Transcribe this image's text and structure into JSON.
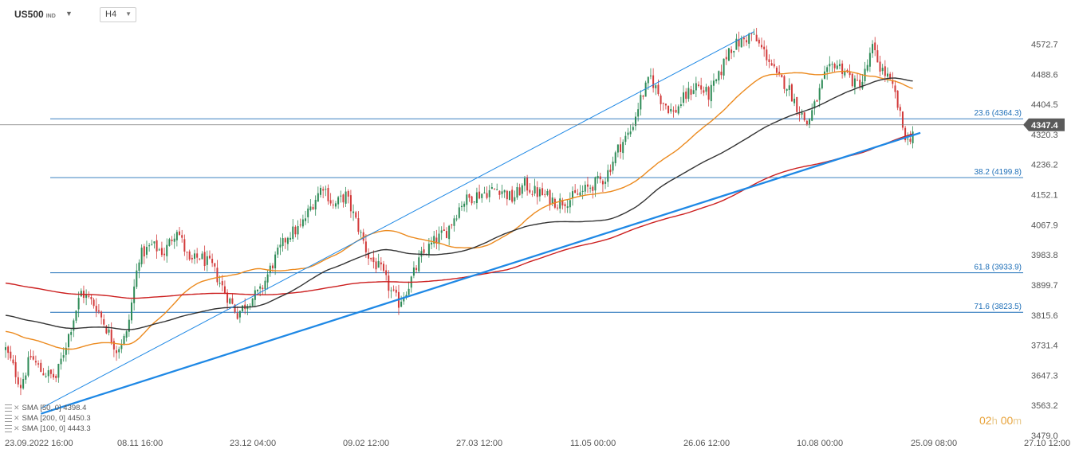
{
  "header": {
    "symbol": "US500",
    "symbol_type": "IND",
    "timeframe": "H4"
  },
  "countdown": {
    "hours": "02",
    "hours_unit": "h",
    "minutes": "00",
    "minutes_unit": "m"
  },
  "colors": {
    "up_candle": "#2e8b57",
    "down_candle": "#d23a3a",
    "sma50": "#ec8a1e",
    "sma100": "#333333",
    "sma200": "#cc1f1f",
    "trendline": "#1e88e5",
    "fib": "#1e6fb8",
    "price_tag": "#5a5a5a"
  },
  "chart_data": {
    "type": "candlestick",
    "instrument": "US500",
    "timeframe": "H4",
    "y_ticks": [
      4572.7,
      4488.6,
      4404.5,
      4320.3,
      4236.2,
      4152.1,
      4067.9,
      3983.8,
      3899.7,
      3815.6,
      3731.4,
      3647.3,
      3563.2,
      3479.0
    ],
    "x_ticks": [
      "23.09.2022 16:00",
      "08.11 16:00",
      "23.12 04:00",
      "09.02 12:00",
      "27.03 12:00",
      "11.05 00:00",
      "26.06 12:00",
      "10.08 00:00",
      "25.09 08:00",
      "27.10 12:00"
    ],
    "ylim": [
      3479.0,
      4600.0
    ],
    "current_price": 4347.4,
    "fib_levels": [
      {
        "label": "23.6 (4364.3)",
        "value": 4364.3
      },
      {
        "label": "38.2 (4199.8)",
        "value": 4199.8
      },
      {
        "label": "61.8 (3933.9)",
        "value": 3933.9
      },
      {
        "label": "71.6 (3823.5)",
        "value": 3823.5
      }
    ],
    "price_anchors": [
      [
        0,
        3720
      ],
      [
        6,
        3620
      ],
      [
        10,
        3700
      ],
      [
        14,
        3660
      ],
      [
        20,
        3640
      ],
      [
        25,
        3760
      ],
      [
        30,
        3880
      ],
      [
        36,
        3840
      ],
      [
        40,
        3780
      ],
      [
        44,
        3720
      ],
      [
        48,
        3760
      ],
      [
        53,
        3980
      ],
      [
        58,
        4010
      ],
      [
        63,
        3990
      ],
      [
        68,
        4060
      ],
      [
        73,
        3960
      ],
      [
        77,
        3980
      ],
      [
        82,
        3950
      ],
      [
        87,
        3880
      ],
      [
        92,
        3820
      ],
      [
        97,
        3860
      ],
      [
        101,
        3880
      ],
      [
        106,
        3960
      ],
      [
        112,
        4040
      ],
      [
        117,
        4060
      ],
      [
        122,
        4130
      ],
      [
        126,
        4180
      ],
      [
        130,
        4120
      ],
      [
        135,
        4150
      ],
      [
        140,
        4060
      ],
      [
        144,
        3980
      ],
      [
        149,
        3940
      ],
      [
        153,
        3880
      ],
      [
        156,
        3850
      ],
      [
        160,
        3900
      ],
      [
        165,
        3980
      ],
      [
        170,
        4020
      ],
      [
        175,
        4050
      ],
      [
        181,
        4130
      ],
      [
        186,
        4150
      ],
      [
        191,
        4160
      ],
      [
        196,
        4170
      ],
      [
        201,
        4140
      ],
      [
        206,
        4180
      ],
      [
        210,
        4160
      ],
      [
        214,
        4150
      ],
      [
        219,
        4130
      ],
      [
        224,
        4140
      ],
      [
        229,
        4160
      ],
      [
        233,
        4180
      ],
      [
        238,
        4200
      ],
      [
        243,
        4280
      ],
      [
        248,
        4330
      ],
      [
        252,
        4420
      ],
      [
        256,
        4480
      ],
      [
        260,
        4420
      ],
      [
        265,
        4380
      ],
      [
        269,
        4420
      ],
      [
        274,
        4460
      ],
      [
        279,
        4430
      ],
      [
        283,
        4480
      ],
      [
        287,
        4560
      ],
      [
        292,
        4580
      ],
      [
        296,
        4600
      ],
      [
        299,
        4570
      ],
      [
        303,
        4530
      ],
      [
        306,
        4480
      ],
      [
        310,
        4460
      ],
      [
        314,
        4400
      ],
      [
        318,
        4350
      ],
      [
        321,
        4400
      ],
      [
        325,
        4480
      ],
      [
        329,
        4520
      ],
      [
        333,
        4500
      ],
      [
        337,
        4460
      ],
      [
        340,
        4470
      ],
      [
        344,
        4560
      ],
      [
        347,
        4510
      ],
      [
        350,
        4480
      ],
      [
        353,
        4430
      ],
      [
        356,
        4340
      ],
      [
        358,
        4300
      ],
      [
        360,
        4330
      ]
    ],
    "candle_count": 361,
    "sma": [
      {
        "name": "SMA (50, 0)",
        "period": 50,
        "legend": "SMA [50, 0] 4398.4"
      },
      {
        "name": "SMA (200, 0)",
        "period": 200,
        "legend": "SMA [200, 0] 4450.3"
      },
      {
        "name": "SMA (100, 0)",
        "period": 100,
        "legend": "SMA [100, 0] 4443.3"
      }
    ],
    "trendlines": [
      {
        "from": [
          14,
          3540
        ],
        "to": [
          363,
          4325
        ]
      },
      {
        "from": [
          14,
          3555
        ],
        "to": [
          297,
          4608
        ]
      }
    ]
  }
}
